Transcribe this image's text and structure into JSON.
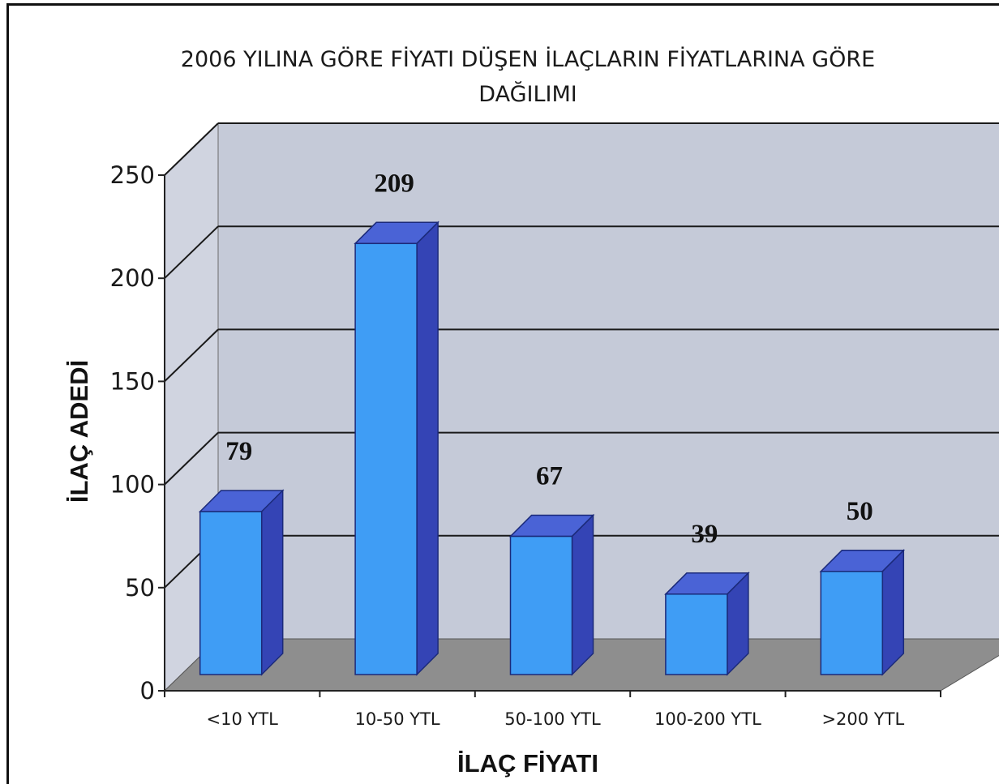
{
  "chart_data": {
    "type": "bar",
    "title_lines": [
      "2006 YILINA GÖRE FİYATI DÜŞEN İLAÇLARIN FİYATLARINA GÖRE",
      "DAĞILIMI"
    ],
    "xlabel": "İLAÇ FİYATI",
    "ylabel": "İLAÇ ADEDİ",
    "categories": [
      "<10 YTL",
      "10-50 YTL",
      "50-100 YTL",
      "100-200 YTL",
      ">200 YTL"
    ],
    "values": [
      79,
      209,
      67,
      39,
      50
    ],
    "data_labels": [
      "79",
      "209",
      "67",
      "39",
      "50"
    ],
    "ylim": [
      0,
      250
    ],
    "yticks": [
      0,
      50,
      100,
      150,
      200,
      250
    ],
    "grid": true,
    "style": "3d-column",
    "colors": {
      "bar_front": "#3f9df5",
      "bar_top": "#4a63d6",
      "bar_side": "#3444b5",
      "back_wall": "#c5cad8",
      "side_wall": "#d0d4e0",
      "floor": "#8e8e8e",
      "grid": "#1a1a1a"
    }
  }
}
